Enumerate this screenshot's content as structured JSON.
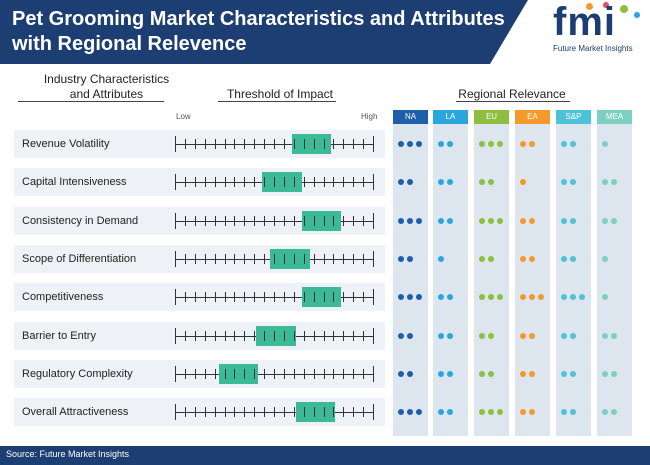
{
  "header": {
    "title_line1": "Pet Grooming Market Characteristics and Attributes",
    "title_line2": "with Regional Relevence"
  },
  "logo": {
    "letters": "fmi",
    "subtitle": "Future Market Insights"
  },
  "columns": {
    "industry_line1": "Industry Characteristics",
    "industry_line2": "and Attributes",
    "threshold": "Threshold of Impact",
    "regional": "Regional Relevance"
  },
  "scale": {
    "low": "Low",
    "high": "High"
  },
  "regions": [
    {
      "code": "NA",
      "color": "#1d5fa8"
    },
    {
      "code": "LA",
      "color": "#2aa6dc"
    },
    {
      "code": "EU",
      "color": "#8cbf3f"
    },
    {
      "code": "EA",
      "color": "#f39a2b"
    },
    {
      "code": "S&P",
      "color": "#4cc3d6"
    },
    {
      "code": "MEA",
      "color": "#7cd0c0"
    }
  ],
  "chart_data": {
    "type": "table",
    "scale_range": [
      "Low",
      "High"
    ],
    "rows": [
      {
        "label": "Revenue Volatility",
        "impact_start": 0.59,
        "impact_end": 0.79,
        "relevance": [
          3,
          2,
          3,
          2,
          2,
          1
        ]
      },
      {
        "label": "Capital Intensiveness",
        "impact_start": 0.44,
        "impact_end": 0.64,
        "relevance": [
          2,
          2,
          2,
          1,
          2,
          2
        ]
      },
      {
        "label": "Consistency in Demand",
        "impact_start": 0.64,
        "impact_end": 0.84,
        "relevance": [
          3,
          2,
          3,
          2,
          2,
          2
        ]
      },
      {
        "label": "Scope of Differentiation",
        "impact_start": 0.48,
        "impact_end": 0.68,
        "relevance": [
          2,
          1,
          2,
          2,
          2,
          1
        ]
      },
      {
        "label": "Competitiveness",
        "impact_start": 0.64,
        "impact_end": 0.84,
        "relevance": [
          3,
          2,
          3,
          3,
          3,
          1
        ]
      },
      {
        "label": "Barrier to Entry",
        "impact_start": 0.41,
        "impact_end": 0.61,
        "relevance": [
          2,
          2,
          2,
          2,
          2,
          2
        ]
      },
      {
        "label": "Regulatory Complexity",
        "impact_start": 0.22,
        "impact_end": 0.42,
        "relevance": [
          2,
          2,
          2,
          2,
          2,
          2
        ]
      },
      {
        "label": "Overall Attractiveness",
        "impact_start": 0.61,
        "impact_end": 0.81,
        "relevance": [
          3,
          2,
          3,
          2,
          2,
          2
        ]
      }
    ]
  },
  "footer": {
    "source": "Source: Future Market Insights"
  }
}
